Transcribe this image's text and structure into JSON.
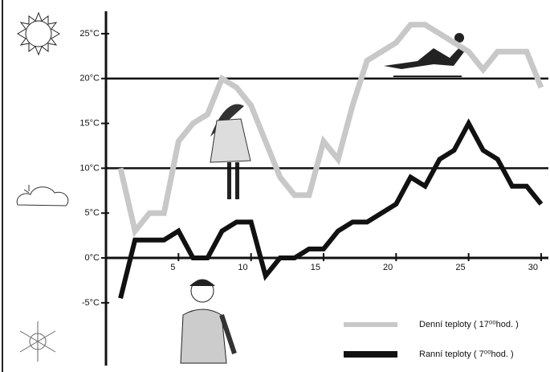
{
  "chart_data": {
    "type": "line",
    "x": [
      1,
      2,
      3,
      4,
      5,
      6,
      7,
      8,
      9,
      10,
      11,
      12,
      13,
      14,
      15,
      16,
      17,
      18,
      19,
      20,
      21,
      22,
      23,
      24,
      25,
      26,
      27,
      28,
      29,
      30
    ],
    "series": [
      {
        "name": "Denní teploty ( 17⁰⁰hod. )",
        "color": "#c8c8c8",
        "values": [
          10,
          3,
          5,
          5,
          13,
          15,
          16,
          20,
          19,
          17,
          13,
          9,
          7,
          7,
          13,
          11,
          17,
          22,
          23,
          24,
          26,
          26,
          25,
          24,
          23,
          21,
          23,
          23,
          23,
          19
        ]
      },
      {
        "name": "Ranní teploty ( 7⁰⁰hod. )",
        "color": "#111111",
        "values": [
          -4.5,
          2,
          2,
          2,
          3,
          0,
          0,
          3,
          4,
          4,
          -2,
          0,
          0,
          1,
          1,
          3,
          4,
          4,
          5,
          6,
          9,
          8,
          11,
          12,
          15,
          12,
          11,
          8,
          8,
          6
        ]
      }
    ],
    "xlim": [
      0,
      30.5
    ],
    "xticks": [
      5,
      10,
      15,
      20,
      25,
      30
    ],
    "ylim": [
      -12,
      27.5
    ],
    "yticks": [
      {
        "value": -5,
        "label": "-5°C"
      },
      {
        "value": 0,
        "label": "0°C"
      },
      {
        "value": 5,
        "label": "5°C"
      },
      {
        "value": 10,
        "label": "10°C"
      },
      {
        "value": 15,
        "label": "15°C"
      },
      {
        "value": 20,
        "label": "20°C"
      },
      {
        "value": 25,
        "label": "25°C"
      }
    ],
    "legend": "bottom-right"
  }
}
